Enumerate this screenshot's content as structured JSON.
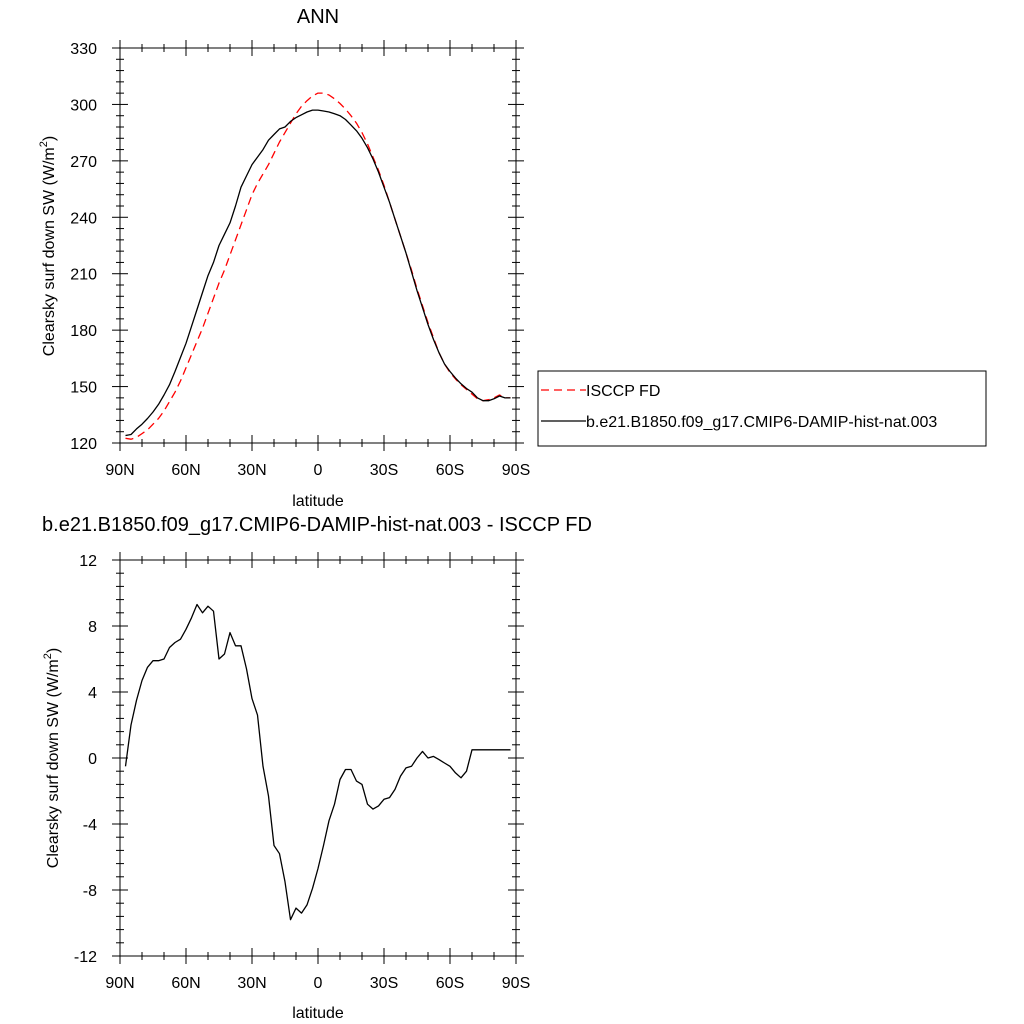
{
  "chart_data": [
    {
      "type": "line",
      "title": "ANN",
      "xlabel": "latitude",
      "ylabel": "Clearsky surf down SW (W/m",
      "ylabel_sup": "2",
      "ylabel_close": ")",
      "xlim": [
        -90,
        90
      ],
      "ylim": [
        120,
        330
      ],
      "xticks": [
        -90,
        -60,
        -30,
        0,
        30,
        60,
        90
      ],
      "xtick_labels": [
        "90N",
        "60N",
        "30N",
        "0",
        "30S",
        "60S",
        "90S"
      ],
      "yticks": [
        120,
        150,
        180,
        210,
        240,
        270,
        300,
        330
      ],
      "ytick_labels": [
        "120",
        "150",
        "180",
        "210",
        "240",
        "270",
        "300",
        "330"
      ],
      "grid": false,
      "legend_position": "right",
      "series": [
        {
          "name": "ISCCP FD",
          "color": "#ff0000",
          "dash": "dashed",
          "x": [
            -87.5,
            -85,
            -82.5,
            -80,
            -77.5,
            -75,
            -72.5,
            -70,
            -67.5,
            -65,
            -62.5,
            -60,
            -57.5,
            -55,
            -52.5,
            -50,
            -47.5,
            -45,
            -42.5,
            -40,
            -37.5,
            -35,
            -32.5,
            -30,
            -27.5,
            -25,
            -22.5,
            -20,
            -17.5,
            -15,
            -12.5,
            -10,
            -7.5,
            -5,
            -2.5,
            0,
            2.5,
            5,
            7.5,
            10,
            12.5,
            15,
            17.5,
            20,
            22.5,
            25,
            27.5,
            30,
            32.5,
            35,
            37.5,
            40,
            42.5,
            45,
            47.5,
            50,
            52.5,
            55,
            57.5,
            60,
            62.5,
            65,
            67.5,
            70,
            72.5,
            75,
            77.5,
            80,
            82.5,
            85,
            87.5
          ],
          "y": [
            122.5,
            122,
            123,
            125,
            127,
            130,
            133,
            137,
            142,
            147,
            153,
            160,
            167,
            174,
            181,
            189,
            197,
            205,
            212,
            220,
            228,
            236,
            244,
            252,
            258,
            263,
            268,
            274,
            280,
            285,
            290,
            295,
            299,
            302,
            304.5,
            306,
            306,
            305,
            303,
            300.5,
            297.5,
            294,
            290,
            285,
            279,
            272,
            265,
            257,
            248,
            239,
            230,
            221,
            212,
            202,
            193,
            184,
            176,
            168,
            162,
            157.5,
            154,
            151,
            148.5,
            146,
            143.5,
            142.5,
            143,
            144,
            145.5,
            144,
            144
          ]
        },
        {
          "name": "b.e21.B1850.f09_g17.CMIP6-DAMIP-hist-nat.003",
          "color": "#000000",
          "dash": "solid",
          "x": [
            -87.5,
            -85,
            -82.5,
            -80,
            -77.5,
            -75,
            -72.5,
            -70,
            -67.5,
            -65,
            -62.5,
            -60,
            -57.5,
            -55,
            -52.5,
            -50,
            -47.5,
            -45,
            -42.5,
            -40,
            -37.5,
            -35,
            -32.5,
            -30,
            -27.5,
            -25,
            -22.5,
            -20,
            -17.5,
            -15,
            -12.5,
            -10,
            -7.5,
            -5,
            -2.5,
            0,
            2.5,
            5,
            7.5,
            10,
            12.5,
            15,
            17.5,
            20,
            22.5,
            25,
            27.5,
            30,
            32.5,
            35,
            37.5,
            40,
            42.5,
            45,
            47.5,
            50,
            52.5,
            55,
            57.5,
            60,
            62.5,
            65,
            67.5,
            70,
            72.5,
            75,
            77.5,
            80,
            82.5,
            85,
            87.5
          ],
          "y": [
            124,
            124.5,
            127.5,
            130,
            133,
            136.5,
            140.5,
            145.5,
            151,
            158,
            165.5,
            173,
            182,
            191,
            200,
            209,
            216,
            225,
            231,
            237,
            246,
            256,
            262,
            268,
            272,
            276,
            281,
            284,
            287,
            288,
            291,
            293,
            294.5,
            296,
            297,
            297,
            296.5,
            296,
            295,
            294,
            292,
            289,
            286,
            282,
            277,
            271,
            264,
            256,
            248,
            239,
            230,
            221,
            211,
            201,
            192,
            183,
            175,
            168,
            162,
            158,
            154.5,
            151.5,
            149,
            147,
            144,
            142.5,
            142.5,
            143.5,
            145,
            144,
            144
          ]
        }
      ]
    },
    {
      "type": "line",
      "title": "b.e21.B1850.f09_g17.CMIP6-DAMIP-hist-nat.003 - ISCCP FD",
      "xlabel": "latitude",
      "ylabel": "Clearsky surf down SW (W/m",
      "ylabel_sup": "2",
      "ylabel_close": ")",
      "xlim": [
        -90,
        90
      ],
      "ylim": [
        -12,
        12
      ],
      "xticks": [
        -90,
        -60,
        -30,
        0,
        30,
        60,
        90
      ],
      "xtick_labels": [
        "90N",
        "60N",
        "30N",
        "0",
        "30S",
        "60S",
        "90S"
      ],
      "yticks": [
        -12,
        -8,
        -4,
        0,
        4,
        8,
        12
      ],
      "ytick_labels": [
        "-12",
        "-8",
        "-4",
        "0",
        "4",
        "8",
        "12"
      ],
      "grid": false,
      "series": [
        {
          "color": "#000000",
          "dash": "solid",
          "x": [
            -87.5,
            -85,
            -82.5,
            -80,
            -77.5,
            -75,
            -72.5,
            -70,
            -67.5,
            -65,
            -62.5,
            -60,
            -57.5,
            -55,
            -52.5,
            -50,
            -47.5,
            -45,
            -42.5,
            -40,
            -37.5,
            -35,
            -32.5,
            -30,
            -27.5,
            -25,
            -22.5,
            -20,
            -17.5,
            -15,
            -12.5,
            -10,
            -7.5,
            -5,
            -2.5,
            0,
            2.5,
            5,
            7.5,
            10,
            12.5,
            15,
            17.5,
            20,
            22.5,
            25,
            27.5,
            30,
            32.5,
            35,
            37.5,
            40,
            42.5,
            45,
            47.5,
            50,
            52.5,
            55,
            57.5,
            60,
            62.5,
            65,
            67.5,
            70,
            72.5,
            75,
            77.5,
            80,
            82.5,
            85,
            87.5
          ],
          "y": [
            -0.5,
            2,
            3.5,
            4.7,
            5.5,
            5.9,
            5.9,
            6,
            6.7,
            7,
            7.2,
            7.8,
            8.5,
            9.3,
            8.8,
            9.2,
            8.9,
            6,
            6.3,
            7.6,
            6.8,
            6.8,
            5.4,
            3.6,
            2.6,
            -0.5,
            -2.3,
            -5.3,
            -5.8,
            -7.5,
            -9.8,
            -9.1,
            -9.4,
            -8.9,
            -7.9,
            -6.7,
            -5.3,
            -3.8,
            -2.8,
            -1.3,
            -0.7,
            -0.7,
            -1.4,
            -1.6,
            -2.8,
            -3.1,
            -2.9,
            -2.5,
            -2.4,
            -1.9,
            -1.1,
            -0.6,
            -0.5,
            0,
            0.4,
            0,
            0.1,
            -0.1,
            -0.3,
            -0.5,
            -0.9,
            -1.2,
            -0.8,
            0.5,
            0.5,
            0.5,
            0.5,
            0.5,
            0.5,
            0.5,
            0.5
          ]
        }
      ]
    }
  ]
}
